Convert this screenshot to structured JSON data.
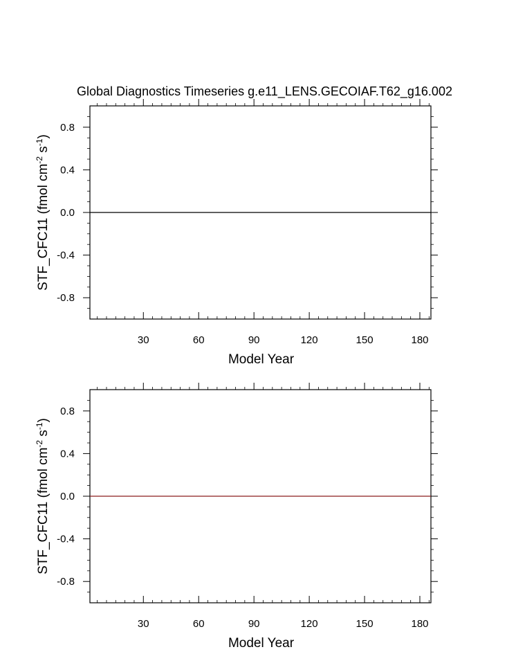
{
  "chart_data": [
    {
      "type": "line",
      "title": "Global Diagnostics Timeseries g.e11_LENS.GECOIAF.T62_g16.002",
      "xlabel": "Model Year",
      "ylabel": "STF_CFC11 (fmol cm",
      "ylabel_sup1": "-2",
      "ylabel_mid": " s",
      "ylabel_sup2": "-1",
      "ylabel_end": ")",
      "xlim": [
        1,
        186
      ],
      "ylim": [
        -1.0,
        1.0
      ],
      "x_ticks": [
        30,
        60,
        90,
        120,
        150,
        180
      ],
      "x_tick_labels": [
        "30",
        "60",
        "90",
        "120",
        "150",
        "180"
      ],
      "y_ticks": [
        0.8,
        0.4,
        0.0,
        -0.4,
        -0.8
      ],
      "y_tick_labels": [
        "0.8",
        "0.4",
        "0.0",
        "-0.4",
        "-0.8"
      ],
      "grid": false,
      "series": [
        {
          "x": [
            1,
            186
          ],
          "y": [
            0.0,
            0.0
          ],
          "color": "#000000"
        }
      ]
    },
    {
      "type": "line",
      "title": "",
      "xlabel": "Model Year",
      "ylabel": "STF_CFC11 (fmol cm",
      "ylabel_sup1": "-2",
      "ylabel_mid": " s",
      "ylabel_sup2": "-1",
      "ylabel_end": ")",
      "xlim": [
        1,
        186
      ],
      "ylim": [
        -1.0,
        1.0
      ],
      "x_ticks": [
        30,
        60,
        90,
        120,
        150,
        180
      ],
      "x_tick_labels": [
        "30",
        "60",
        "90",
        "120",
        "150",
        "180"
      ],
      "y_ticks": [
        0.8,
        0.4,
        0.0,
        -0.4,
        -0.8
      ],
      "y_tick_labels": [
        "0.8",
        "0.4",
        "0.0",
        "-0.4",
        "-0.8"
      ],
      "grid": false,
      "series": [
        {
          "x": [
            1,
            186
          ],
          "y": [
            0.0,
            0.0
          ],
          "color": "#8b1a1a"
        }
      ]
    }
  ]
}
